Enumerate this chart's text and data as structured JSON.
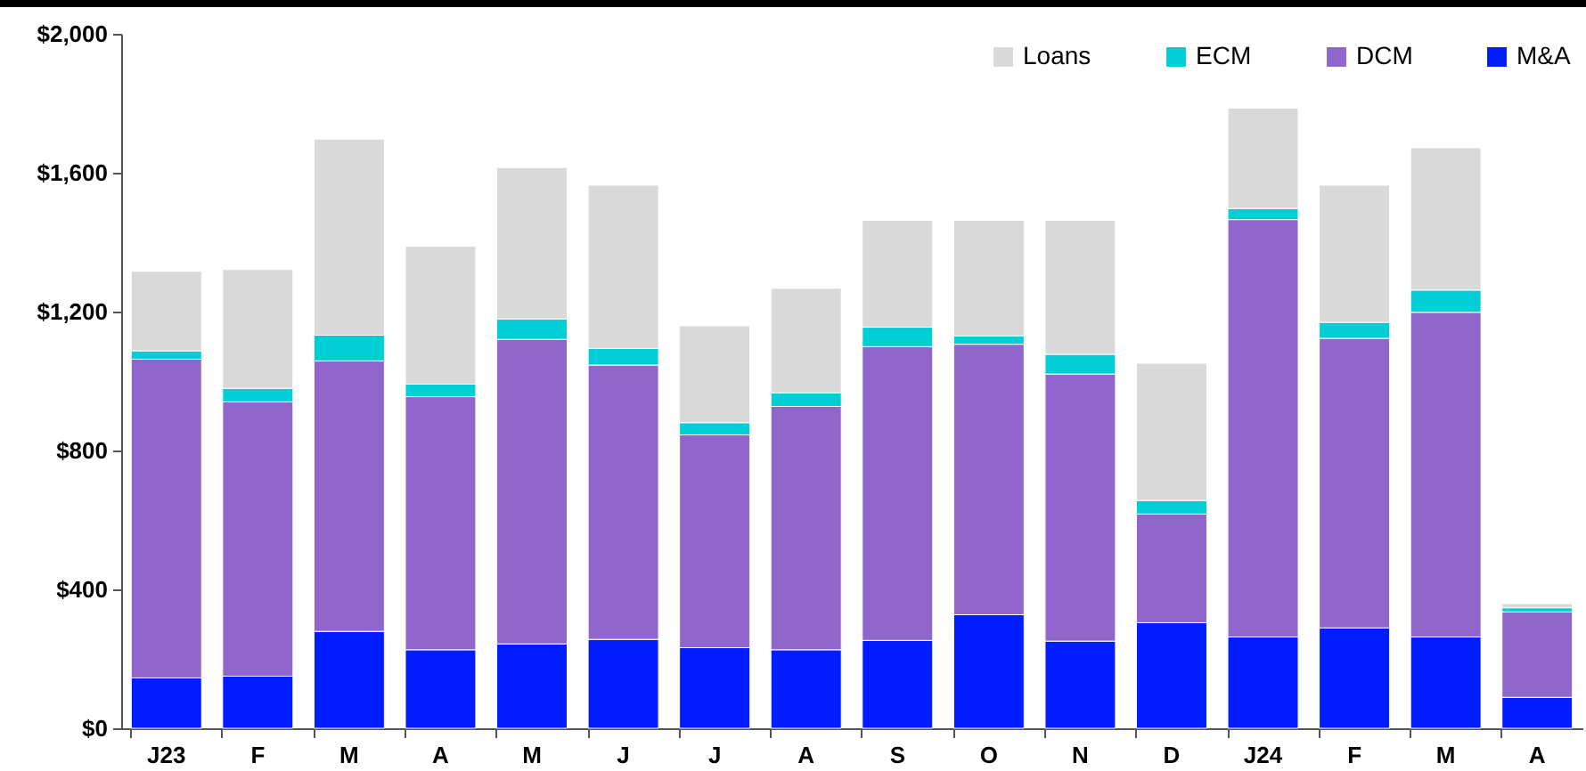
{
  "chart_data": {
    "type": "bar",
    "stacked": true,
    "categories": [
      "J23",
      "F",
      "M",
      "A",
      "M",
      "J",
      "J",
      "A",
      "S",
      "O",
      "N",
      "D",
      "J24",
      "F",
      "M",
      "A"
    ],
    "series": [
      {
        "name": "M&A",
        "color": "#001cff",
        "values": [
          145,
          150,
          279,
          226,
          243,
          256,
          232,
          226,
          253,
          327,
          251,
          304,
          263,
          289,
          263,
          89
        ]
      },
      {
        "name": "DCM",
        "color": "#9066cc",
        "values": [
          918,
          790,
          779,
          729,
          877,
          790,
          613,
          701,
          846,
          779,
          769,
          313,
          1202,
          834,
          935,
          246
        ]
      },
      {
        "name": "ECM",
        "color": "#00ced6",
        "values": [
          24,
          39,
          74,
          36,
          59,
          48,
          35,
          39,
          56,
          24,
          57,
          39,
          32,
          46,
          64,
          12
        ]
      },
      {
        "name": "Loans",
        "color": "#d9d9d9",
        "values": [
          229,
          342,
          565,
          397,
          436,
          470,
          279,
          301,
          308,
          333,
          386,
          395,
          289,
          395,
          410,
          12
        ]
      }
    ],
    "ylim": [
      0,
      2000
    ],
    "yticks": [
      {
        "value": 0,
        "label": "$0"
      },
      {
        "value": 400,
        "label": "$400"
      },
      {
        "value": 800,
        "label": "$800"
      },
      {
        "value": 1200,
        "label": "$1,200"
      },
      {
        "value": 1600,
        "label": "$1,600"
      },
      {
        "value": 2000,
        "label": "$2,000"
      }
    ],
    "legend": "top right",
    "grid": false
  }
}
